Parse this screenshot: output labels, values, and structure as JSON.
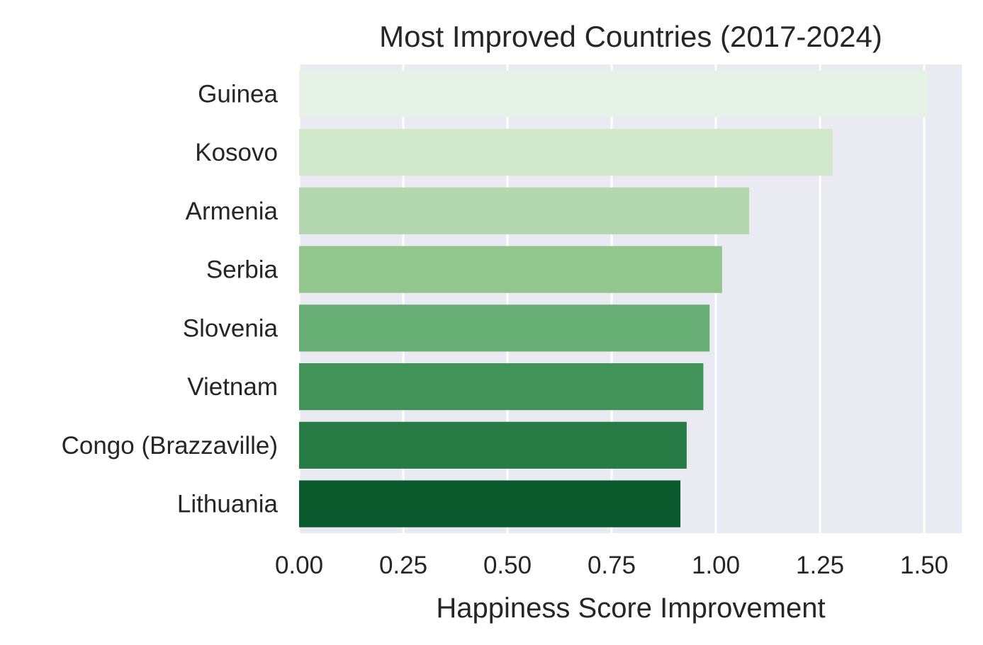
{
  "chart_data": {
    "type": "bar",
    "orientation": "horizontal",
    "title": "Most Improved Countries (2017-2024)",
    "xlabel": "Happiness Score Improvement",
    "ylabel": "",
    "categories": [
      "Guinea",
      "Kosovo",
      "Armenia",
      "Serbia",
      "Slovenia",
      "Vietnam",
      "Congo (Brazzaville)",
      "Lithuania"
    ],
    "values": [
      1.51,
      1.28,
      1.08,
      1.015,
      0.985,
      0.97,
      0.93,
      0.915
    ],
    "colors": [
      "#e7f2e6",
      "#d1e8cd",
      "#b3d8b0",
      "#92c68e",
      "#67ae74",
      "#42935a",
      "#277b44",
      "#0b5a2d"
    ],
    "xlim": [
      0,
      1.59
    ],
    "xticks": [
      0.0,
      0.25,
      0.5,
      0.75,
      1.0,
      1.25,
      1.5
    ],
    "xtick_labels": [
      "0.00",
      "0.25",
      "0.50",
      "0.75",
      "1.00",
      "1.25",
      "1.50"
    ],
    "grid": true,
    "background": "#eaeaf2"
  }
}
